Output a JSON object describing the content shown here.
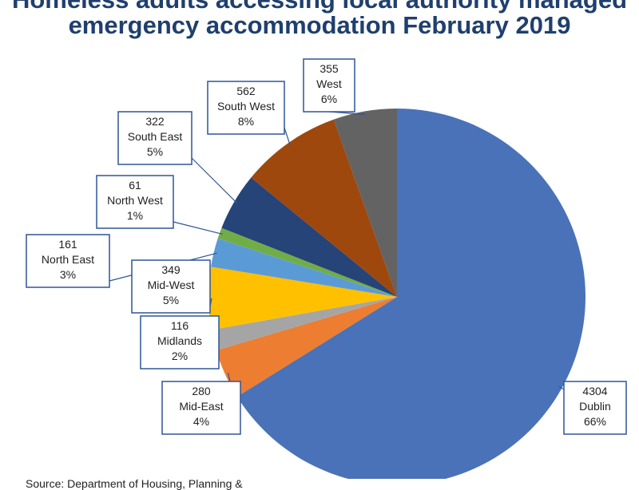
{
  "title": {
    "line1": "Homeless adults accessing local authority managed",
    "line2": "emergency accommodation February 2019"
  },
  "source": "Source: Department of Housing, Planning &",
  "chart_data": {
    "type": "pie",
    "start": "top, clockwise",
    "slices": [
      {
        "label": "Dublin",
        "value": 4304,
        "percent": "66%",
        "color": "#4a72b8"
      },
      {
        "label": "Mid-East",
        "value": 280,
        "percent": "4%",
        "color": "#ed7d31"
      },
      {
        "label": "Midlands",
        "value": 116,
        "percent": "2%",
        "color": "#a5a5a5"
      },
      {
        "label": "Mid-West",
        "value": 349,
        "percent": "5%",
        "color": "#ffc000"
      },
      {
        "label": "North East",
        "value": 161,
        "percent": "3%",
        "color": "#5b9bd5"
      },
      {
        "label": "North West",
        "value": 61,
        "percent": "1%",
        "color": "#70ad47"
      },
      {
        "label": "South East",
        "value": 322,
        "percent": "5%",
        "color": "#264478"
      },
      {
        "label": "South West",
        "value": 562,
        "percent": "8%",
        "color": "#9e480e"
      },
      {
        "label": "West",
        "value": 355,
        "percent": "6%",
        "color": "#636363"
      }
    ]
  }
}
